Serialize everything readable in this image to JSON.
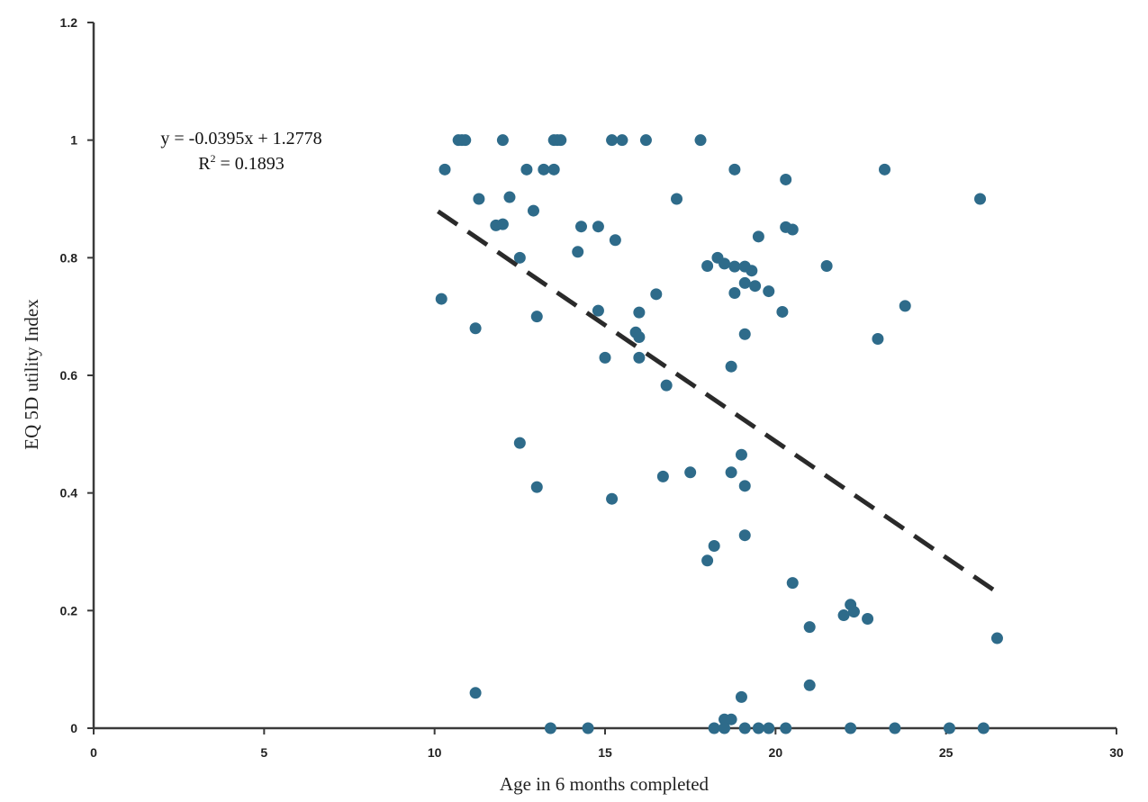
{
  "chart_data": {
    "type": "scatter",
    "xlabel": "Age in 6 months completed",
    "ylabel": "EQ 5D utility Index",
    "xlim": [
      0,
      30
    ],
    "ylim": [
      0,
      1.2
    ],
    "x_ticks": [
      0,
      5,
      10,
      15,
      20,
      25,
      30
    ],
    "y_ticks": [
      0,
      0.2,
      0.4,
      0.6,
      0.8,
      1,
      1.2
    ],
    "x_tick_labels": [
      "0",
      "5",
      "10",
      "15",
      "20",
      "25",
      "30"
    ],
    "y_tick_labels": [
      "0",
      "0.2",
      "0.4",
      "0.6",
      "0.8",
      "1",
      "1.2"
    ],
    "grid": false,
    "point_color": "#2e6b8a",
    "trendline_color": "#2a2a2a",
    "annotations": {
      "equation": "y = -0.0395x + 1.2778",
      "r_squared_prefix": "R",
      "r_squared_exponent": "2",
      "r_squared_value": " = 0.1893"
    },
    "trendline": {
      "slope": -0.0395,
      "intercept": 1.2778,
      "x_start": 10.1,
      "x_end": 26.5
    },
    "points": [
      [
        10.2,
        0.73
      ],
      [
        10.3,
        0.95
      ],
      [
        10.7,
        1.0
      ],
      [
        10.8,
        1.0
      ],
      [
        10.9,
        1.0
      ],
      [
        11.2,
        0.68
      ],
      [
        11.2,
        0.06
      ],
      [
        11.3,
        0.9
      ],
      [
        11.8,
        0.855
      ],
      [
        12.0,
        0.857
      ],
      [
        12.0,
        1.0
      ],
      [
        12.2,
        0.903
      ],
      [
        12.5,
        0.8
      ],
      [
        12.5,
        0.485
      ],
      [
        12.7,
        0.95
      ],
      [
        12.9,
        0.88
      ],
      [
        13.0,
        0.7
      ],
      [
        13.0,
        0.41
      ],
      [
        13.2,
        0.95
      ],
      [
        13.4,
        0.0
      ],
      [
        13.5,
        1.0
      ],
      [
        13.6,
        1.0
      ],
      [
        13.5,
        0.95
      ],
      [
        13.7,
        1.0
      ],
      [
        14.2,
        0.81
      ],
      [
        14.3,
        0.853
      ],
      [
        14.5,
        0.0
      ],
      [
        14.8,
        0.853
      ],
      [
        14.8,
        0.71
      ],
      [
        15.0,
        0.63
      ],
      [
        15.2,
        1.0
      ],
      [
        15.2,
        0.39
      ],
      [
        15.3,
        0.83
      ],
      [
        15.5,
        1.0
      ],
      [
        15.9,
        0.673
      ],
      [
        16.0,
        0.665
      ],
      [
        16.0,
        0.707
      ],
      [
        16.0,
        0.63
      ],
      [
        16.2,
        1.0
      ],
      [
        16.5,
        0.738
      ],
      [
        16.7,
        0.428
      ],
      [
        16.8,
        0.583
      ],
      [
        17.1,
        0.9
      ],
      [
        17.5,
        0.435
      ],
      [
        17.8,
        1.0
      ],
      [
        18.0,
        0.786
      ],
      [
        18.0,
        0.285
      ],
      [
        18.2,
        0.31
      ],
      [
        18.2,
        0.0
      ],
      [
        18.3,
        0.8
      ],
      [
        18.5,
        0.79
      ],
      [
        18.5,
        0.015
      ],
      [
        18.5,
        0.0
      ],
      [
        18.7,
        0.615
      ],
      [
        18.7,
        0.435
      ],
      [
        18.7,
        0.015
      ],
      [
        18.8,
        0.95
      ],
      [
        18.8,
        0.785
      ],
      [
        18.8,
        0.74
      ],
      [
        19.0,
        0.465
      ],
      [
        19.0,
        0.053
      ],
      [
        19.1,
        0.785
      ],
      [
        19.1,
        0.757
      ],
      [
        19.1,
        0.67
      ],
      [
        19.1,
        0.412
      ],
      [
        19.1,
        0.328
      ],
      [
        19.1,
        0.0
      ],
      [
        19.3,
        0.778
      ],
      [
        19.4,
        0.752
      ],
      [
        19.5,
        0.836
      ],
      [
        19.5,
        0.0
      ],
      [
        19.8,
        0.743
      ],
      [
        19.8,
        0.0
      ],
      [
        20.2,
        0.708
      ],
      [
        20.3,
        0.933
      ],
      [
        20.3,
        0.852
      ],
      [
        20.3,
        0.0
      ],
      [
        20.5,
        0.848
      ],
      [
        20.5,
        0.247
      ],
      [
        21.0,
        0.172
      ],
      [
        21.0,
        0.073
      ],
      [
        21.5,
        0.786
      ],
      [
        22.0,
        0.192
      ],
      [
        22.2,
        0.21
      ],
      [
        22.3,
        0.198
      ],
      [
        22.2,
        0.0
      ],
      [
        22.7,
        0.186
      ],
      [
        23.0,
        0.662
      ],
      [
        23.2,
        0.95
      ],
      [
        23.5,
        0.0
      ],
      [
        23.8,
        0.718
      ],
      [
        25.1,
        0.0
      ],
      [
        26.0,
        0.9
      ],
      [
        26.1,
        0.0
      ],
      [
        26.5,
        0.153
      ]
    ]
  }
}
